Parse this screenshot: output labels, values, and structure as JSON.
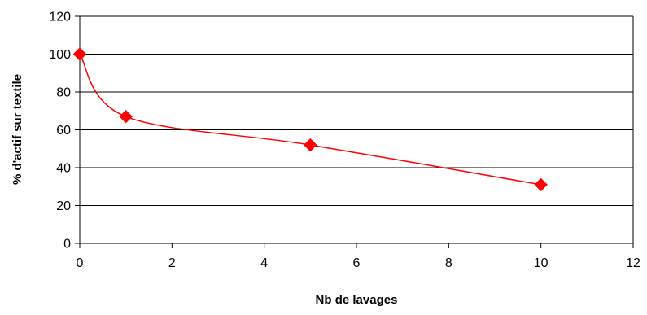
{
  "chart_data": {
    "type": "scatter",
    "title": "",
    "xlabel": "Nb de lavages",
    "ylabel": "% d'actif sur textile",
    "xlim": [
      0,
      12
    ],
    "ylim": [
      0,
      120
    ],
    "x_ticks": [
      0,
      2,
      4,
      6,
      8,
      10,
      12
    ],
    "y_ticks": [
      0,
      20,
      40,
      60,
      80,
      100,
      120
    ],
    "grid": "horizontal",
    "legend": "none",
    "series": [
      {
        "x": [
          0,
          1,
          5,
          10
        ],
        "y": [
          100,
          67,
          52,
          31
        ],
        "color": "#ff0000",
        "marker": "diamond",
        "line": "smooth"
      }
    ]
  }
}
